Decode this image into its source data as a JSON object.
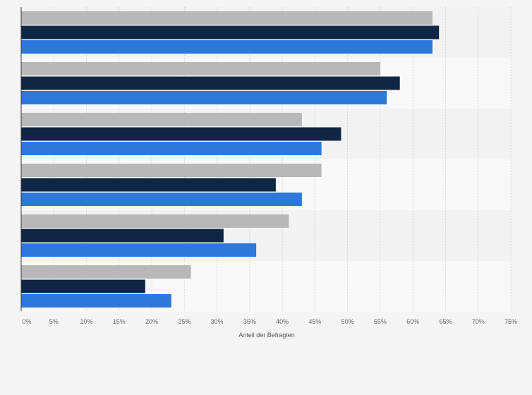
{
  "chart_data": {
    "type": "bar",
    "orientation": "horizontal",
    "categories": [
      "",
      "",
      "",
      "",
      "",
      ""
    ],
    "series": [
      {
        "color": "#b8b8b8",
        "values": [
          63,
          55,
          43,
          46,
          41,
          26
        ]
      },
      {
        "color": "#0f2744",
        "values": [
          64,
          58,
          49,
          39,
          31,
          19
        ]
      },
      {
        "color": "#2d78d9",
        "values": [
          63,
          56,
          46,
          43,
          36,
          23
        ]
      }
    ],
    "xlabel": "Anteil der Befragten",
    "xlim": [
      0,
      75
    ],
    "x_ticks": [
      0,
      5,
      10,
      15,
      20,
      25,
      30,
      35,
      40,
      45,
      50,
      55,
      60,
      65,
      70,
      75
    ],
    "x_tick_labels": [
      "0%",
      "5%",
      "10%",
      "15%",
      "20%",
      "25%",
      "30%",
      "35%",
      "40%",
      "45%",
      "50%",
      "55%",
      "60%",
      "65%",
      "70%",
      "75%"
    ],
    "grid": true,
    "legend": "none"
  },
  "colors": {
    "page_background": "#f4f4f4",
    "band_dark": "#f2f2f2",
    "band_light": "#f8f8f8",
    "grid_line": "#cfcfcf",
    "axis_line": "#333333"
  }
}
